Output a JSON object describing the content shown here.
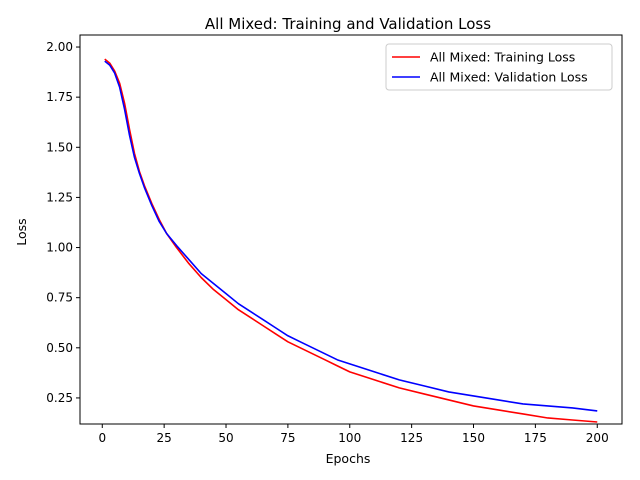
{
  "chart_data": {
    "type": "line",
    "title": "All Mixed: Training and Validation Loss",
    "xlabel": "Epochs",
    "ylabel": "Loss",
    "xlim": [
      -9,
      210
    ],
    "ylim": [
      0.12,
      2.06
    ],
    "xticks": [
      0,
      25,
      50,
      75,
      100,
      125,
      150,
      175,
      200
    ],
    "yticks": [
      0.25,
      0.5,
      0.75,
      1.0,
      1.25,
      1.5,
      1.75,
      2.0
    ],
    "ytick_labels": [
      "0.25",
      "0.50",
      "0.75",
      "1.00",
      "1.25",
      "1.50",
      "1.75",
      "2.00"
    ],
    "grid": false,
    "legend_position": "top-right",
    "x": [
      1,
      3,
      5,
      7,
      9,
      11,
      13,
      15,
      17,
      20,
      23,
      26,
      30,
      35,
      40,
      45,
      50,
      55,
      60,
      65,
      70,
      75,
      80,
      85,
      90,
      95,
      100,
      110,
      120,
      130,
      140,
      150,
      160,
      170,
      180,
      190,
      200
    ],
    "series": [
      {
        "name": "All Mixed: Training Loss",
        "color": "#ff0000",
        "values": [
          1.94,
          1.92,
          1.88,
          1.82,
          1.72,
          1.59,
          1.47,
          1.38,
          1.31,
          1.22,
          1.14,
          1.07,
          1.0,
          0.92,
          0.85,
          0.79,
          0.74,
          0.69,
          0.65,
          0.61,
          0.57,
          0.53,
          0.5,
          0.47,
          0.44,
          0.41,
          0.38,
          0.34,
          0.3,
          0.27,
          0.24,
          0.21,
          0.19,
          0.17,
          0.15,
          0.14,
          0.13
        ]
      },
      {
        "name": "All Mixed: Validation Loss",
        "color": "#0000ff",
        "values": [
          1.93,
          1.91,
          1.87,
          1.8,
          1.69,
          1.56,
          1.45,
          1.37,
          1.3,
          1.21,
          1.13,
          1.07,
          1.01,
          0.94,
          0.87,
          0.82,
          0.77,
          0.72,
          0.68,
          0.64,
          0.6,
          0.56,
          0.53,
          0.5,
          0.47,
          0.44,
          0.42,
          0.38,
          0.34,
          0.31,
          0.28,
          0.26,
          0.24,
          0.22,
          0.21,
          0.2,
          0.185
        ]
      }
    ]
  }
}
